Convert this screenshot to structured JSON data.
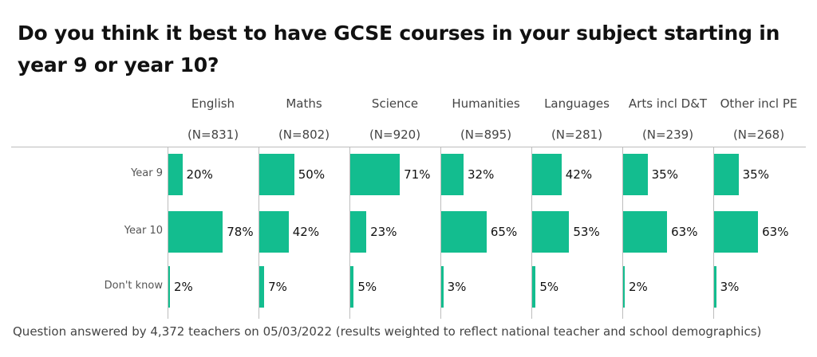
{
  "title": "Do you think it best to have GCSE courses in your subject starting in year 9 or year 10?",
  "footer": "Question answered by 4,372 teachers on 05/03/2022 (results weighted to reflect national teacher and school demographics)",
  "colors": {
    "bar": "#13bd8f",
    "grid": "#bdbdbd"
  },
  "chart_data": {
    "type": "bar",
    "orientation": "horizontal",
    "categories": [
      "Year 9",
      "Year 10",
      "Don't know"
    ],
    "panels": [
      {
        "name": "English",
        "n": "(N=831)",
        "values": [
          20,
          78,
          2
        ],
        "labels": [
          "20%",
          "78%",
          "2%"
        ]
      },
      {
        "name": "Maths",
        "n": "(N=802)",
        "values": [
          50,
          42,
          7
        ],
        "labels": [
          "50%",
          "42%",
          "7%"
        ]
      },
      {
        "name": "Science",
        "n": "(N=920)",
        "values": [
          71,
          23,
          5
        ],
        "labels": [
          "71%",
          "23%",
          "5%"
        ]
      },
      {
        "name": "Humanities",
        "n": "(N=895)",
        "values": [
          32,
          65,
          3
        ],
        "labels": [
          "32%",
          "65%",
          "3%"
        ]
      },
      {
        "name": "Languages",
        "n": "(N=281)",
        "values": [
          42,
          53,
          5
        ],
        "labels": [
          "42%",
          "53%",
          "5%"
        ]
      },
      {
        "name": "Arts incl D&T",
        "n": "(N=239)",
        "values": [
          35,
          63,
          2
        ],
        "labels": [
          "35%",
          "63%",
          "2%"
        ]
      },
      {
        "name": "Other incl PE",
        "n": "(N=268)",
        "values": [
          35,
          63,
          3
        ],
        "labels": [
          "35%",
          "63%",
          "3%"
        ]
      }
    ],
    "xlim": [
      0,
      100
    ],
    "grid": false,
    "legend": "none"
  }
}
